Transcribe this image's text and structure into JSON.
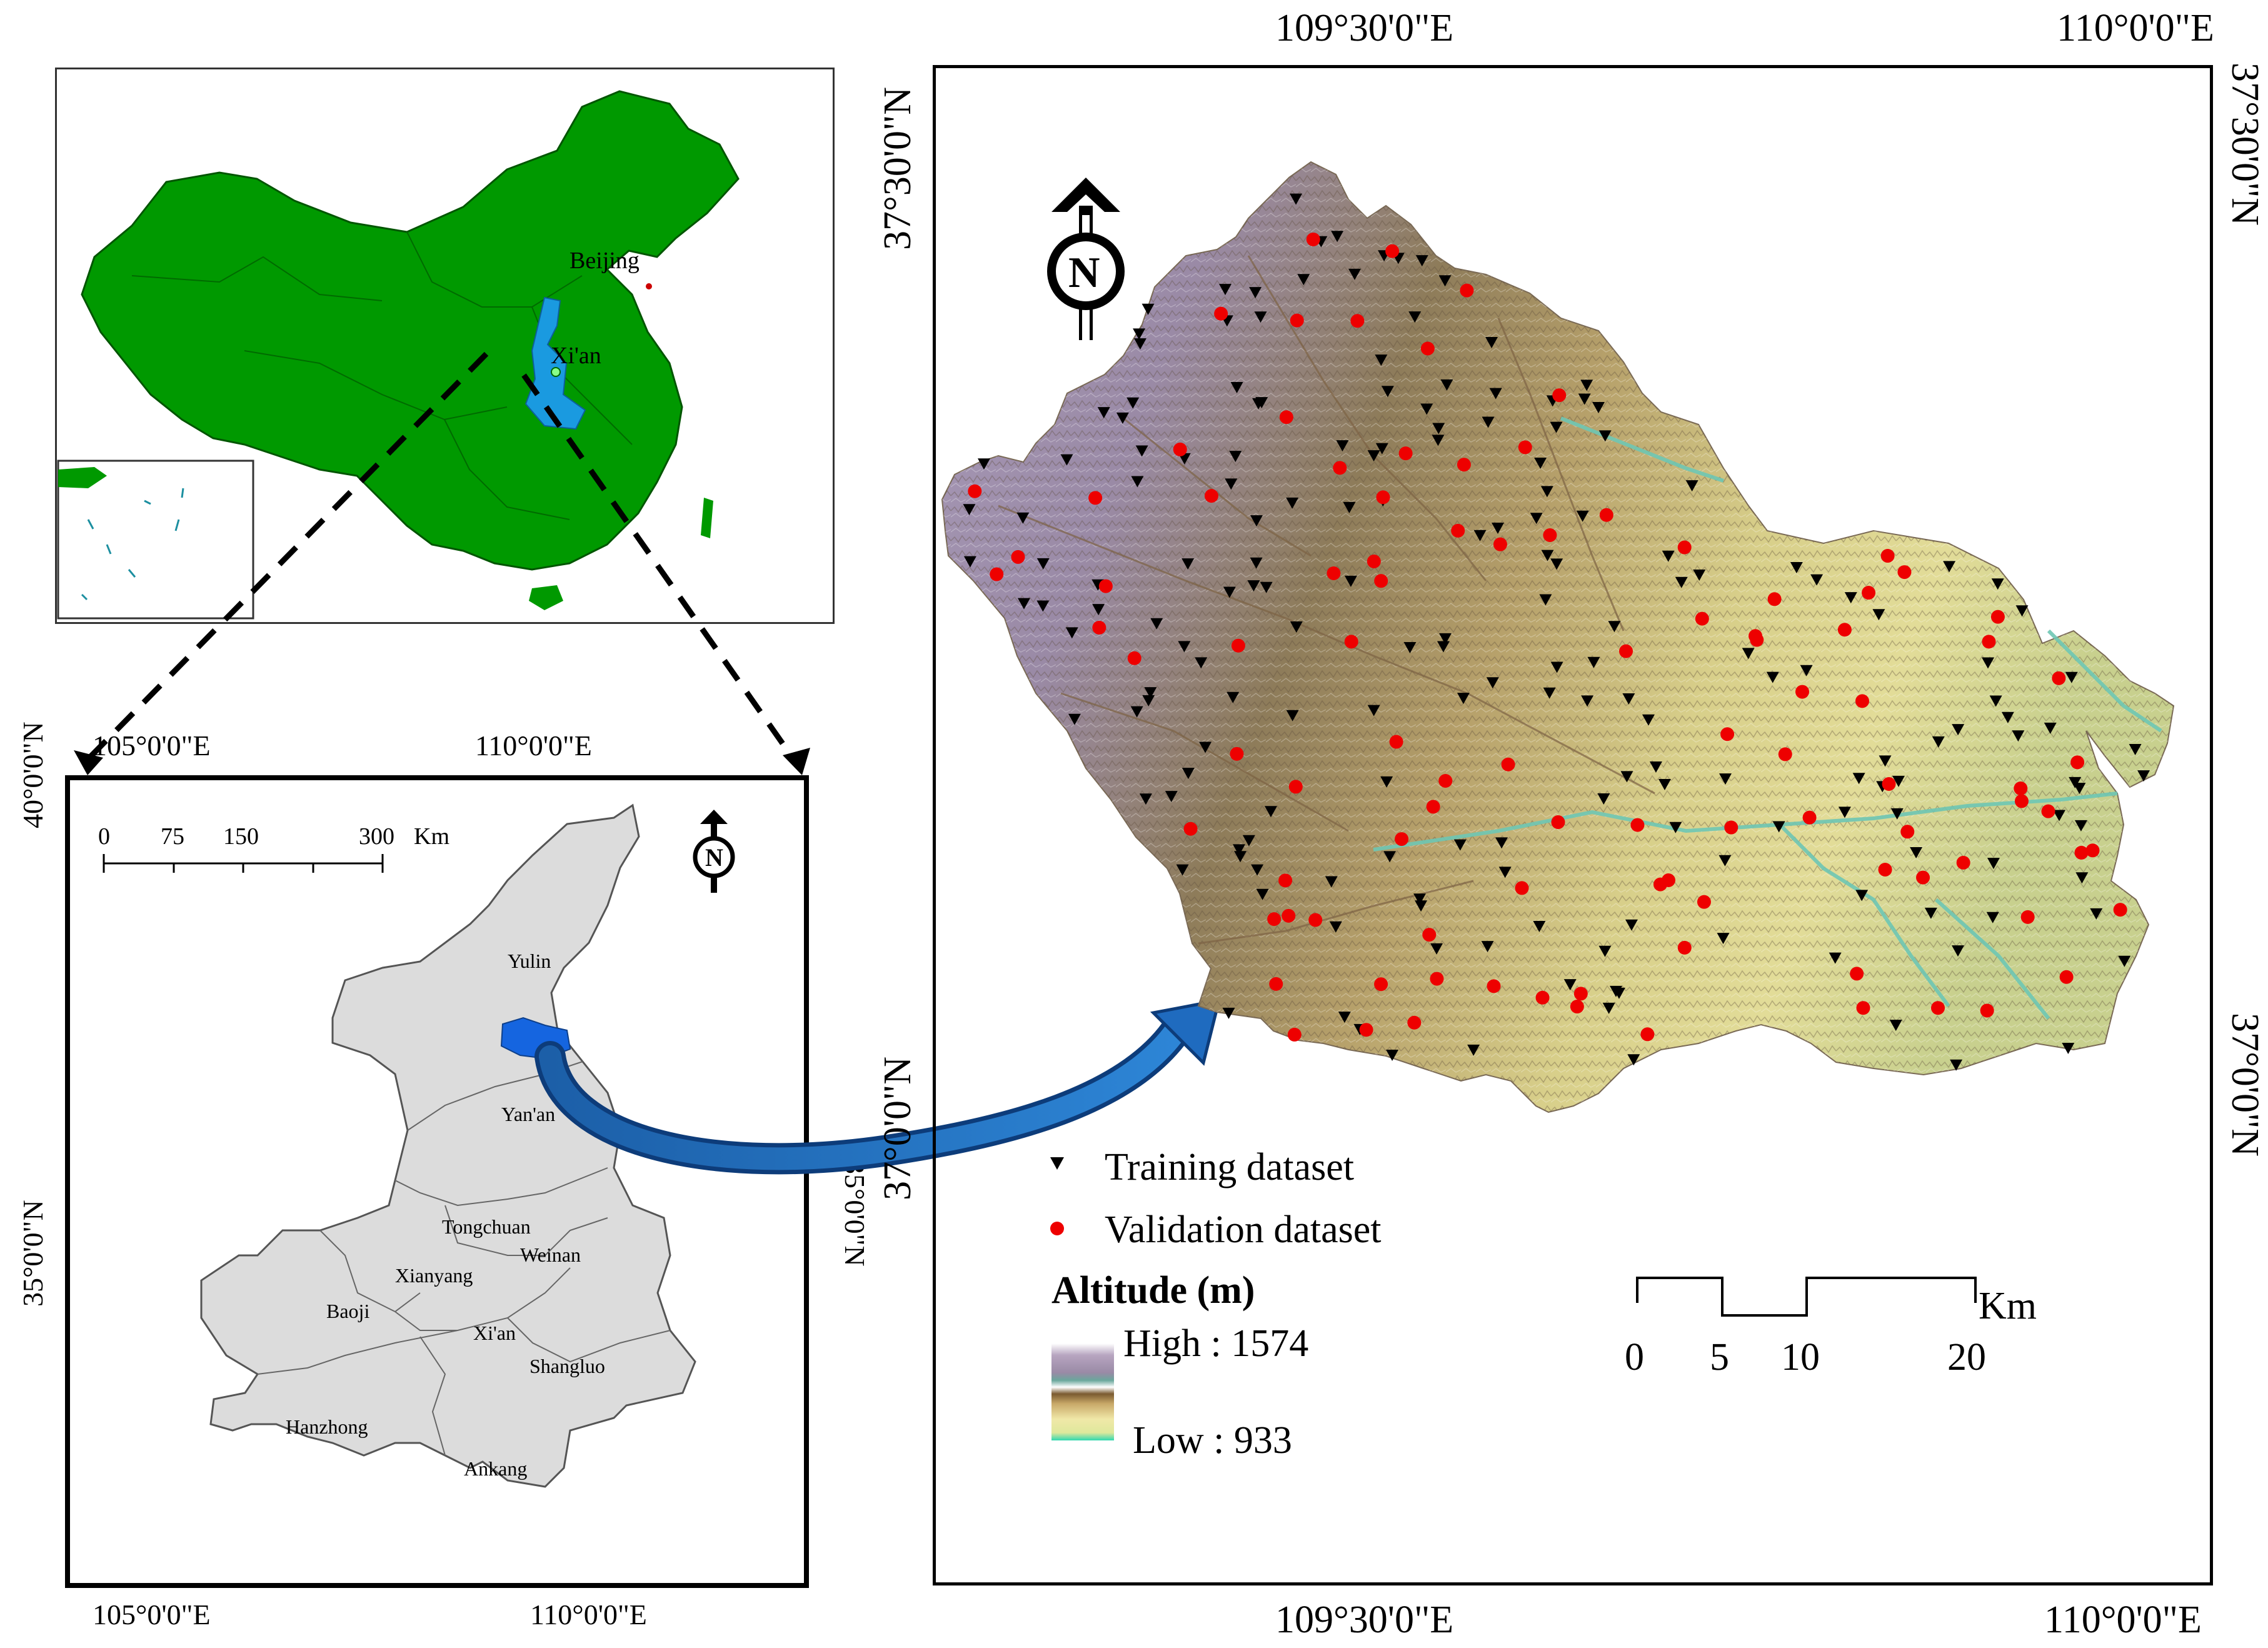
{
  "china_inset": {
    "labels": {
      "capital": "Beijing",
      "city": "Xi'an"
    },
    "colors": {
      "land": "#009900",
      "highlight": "#1a9ae0",
      "capital_marker": "#cc0000"
    }
  },
  "shaanxi_map": {
    "coords": {
      "top_left": "105°0'0\"E",
      "top_right": "110°0'0\"E",
      "bottom_left": "105°0'0\"E",
      "bottom_right": "110°0'0\"E",
      "left_top": "40°0'0\"N",
      "left_mid": "35°0'0\"N",
      "right_mid": "35°0'0\"N"
    },
    "scale_bar": {
      "ticks": [
        "0",
        "75",
        "150",
        "300"
      ],
      "unit": "Km"
    },
    "cities": [
      "Yulin",
      "Yan'an",
      "Tongchuan",
      "Weinan",
      "Xianyang",
      "Baoji",
      "Xi'an",
      "Shangluo",
      "Hanzhong",
      "Ankang"
    ],
    "colors": {
      "province": "#dcdcdc",
      "study_area": "#1565e0"
    }
  },
  "study_area_map": {
    "coords": {
      "top_left": "109°30'0\"E",
      "top_right": "110°0'0\"E",
      "bottom_left": "109°30'0\"E",
      "bottom_right": "110°0'0\"E",
      "left_top": "37°30'0\"N",
      "left_bottom": "37°0'0\"N",
      "right_top": "37°30'0\"N",
      "right_bottom": "37°0'0\"N"
    },
    "legend": {
      "training": "Training dataset",
      "validation": "Validation dataset",
      "altitude_title": "Altitude (m)",
      "high": "High : 1574",
      "low": "Low : 933"
    },
    "scale_bar": {
      "ticks": [
        "0",
        "5",
        "10",
        "20"
      ],
      "unit": "Km"
    },
    "colors": {
      "training": "#000000",
      "validation": "#ee0000"
    }
  },
  "north_arrow_label": "N"
}
